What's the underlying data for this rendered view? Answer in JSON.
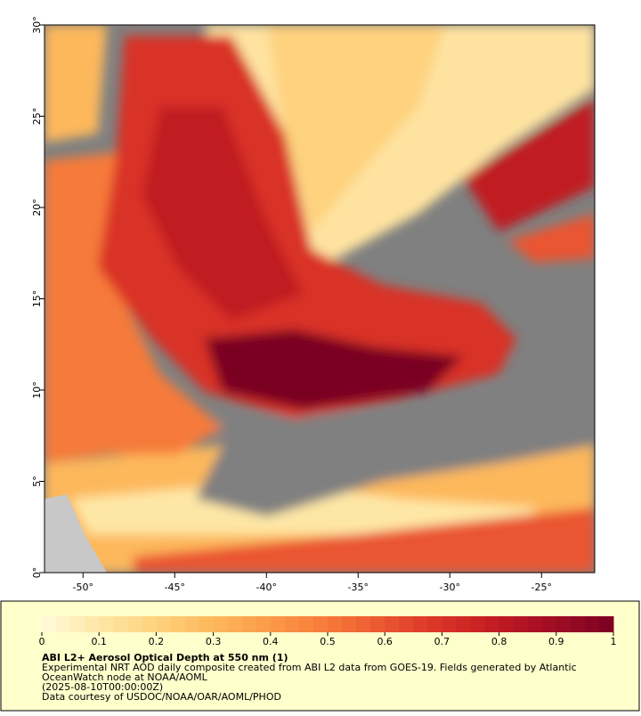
{
  "map": {
    "xlim": [
      -52.1,
      -22.1
    ],
    "ylim": [
      0,
      30
    ],
    "xticks": [
      {
        "value": -50,
        "label": "-50°"
      },
      {
        "value": -45,
        "label": "-45°"
      },
      {
        "value": -40,
        "label": "-40°"
      },
      {
        "value": -35,
        "label": "-35°"
      },
      {
        "value": -30,
        "label": "-30°"
      },
      {
        "value": -25,
        "label": "-25°"
      }
    ],
    "yticks": [
      {
        "value": 0,
        "label": "0°"
      },
      {
        "value": 5,
        "label": "5°"
      },
      {
        "value": 10,
        "label": "10°"
      },
      {
        "value": 15,
        "label": "15°"
      },
      {
        "value": 20,
        "label": "20°"
      },
      {
        "value": 25,
        "label": "25°"
      },
      {
        "value": 30,
        "label": "30°"
      }
    ]
  },
  "colorbar": {
    "lim": [
      0,
      1
    ],
    "ticks": [
      0,
      0.1,
      0.2,
      0.3,
      0.4,
      0.5,
      0.6,
      0.7,
      0.8,
      0.9,
      1
    ],
    "colors": [
      "#fffadb",
      "#fee7a6",
      "#fed27e",
      "#fdb85c",
      "#fb9a48",
      "#f67a3a",
      "#ea5530",
      "#d93226",
      "#c01a22",
      "#9e0c24",
      "#7a0022"
    ]
  },
  "legend": {
    "title": "ABI L2+ Aerosol Optical Depth at 550 nm (1)",
    "lines": [
      "Experimental NRT AOD daily composite created from ABI L2 data from GOES-19. Fields generated by Atlantic",
      "OceanWatch node at NOAA/AOML",
      "(2025-08-10T00:00:00Z)",
      "Data courtesy of USDOC/NOAA/OAR/AOML/PHOD"
    ]
  }
}
